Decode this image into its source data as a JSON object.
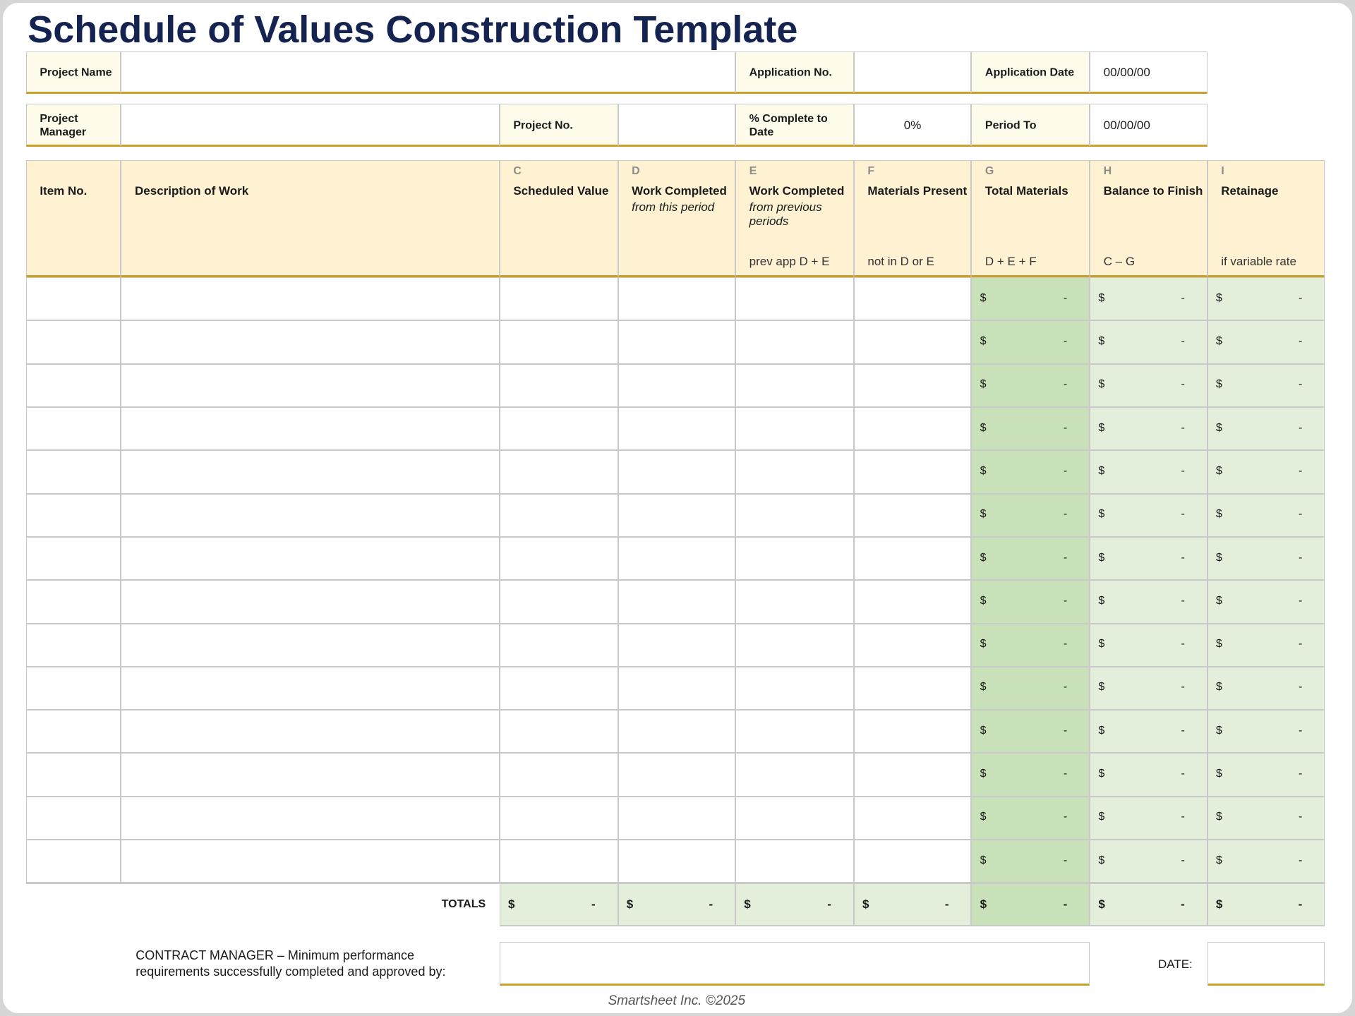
{
  "title": "Schedule of Values Construction Template",
  "info_rows": [
    [
      {
        "label": "Project Name"
      },
      {
        "label": "Application No."
      },
      {
        "label": "Application Date",
        "value": "00/00/00"
      }
    ],
    [
      {
        "label": "Project Manager"
      },
      {
        "label": "Project No."
      },
      {
        "label": "% Complete to Date",
        "value": "0%"
      },
      {
        "label": "Period To",
        "value": "00/00/00"
      }
    ]
  ],
  "columns": [
    {
      "name": "Item No."
    },
    {
      "name": "Description of Work"
    },
    {
      "letter": "C",
      "name": "Scheduled Value"
    },
    {
      "letter": "D",
      "name": "Work Completed",
      "note": "from this period"
    },
    {
      "letter": "E",
      "name": "Work Completed",
      "note": "from previous periods",
      "formula": "prev app D + E"
    },
    {
      "letter": "F",
      "name": "Materials Present",
      "formula": "not in D or E"
    },
    {
      "letter": "G",
      "name": "Total Materials",
      "formula": "D + E + F"
    },
    {
      "letter": "H",
      "name": "Balance to Finish",
      "formula": "C – G"
    },
    {
      "letter": "I",
      "name": "Retainage",
      "formula": "if variable rate"
    }
  ],
  "currency": "$",
  "rows": [
    [
      "-",
      "-",
      "-"
    ],
    [
      "-",
      "-",
      "-"
    ],
    [
      "-",
      "-",
      "-"
    ],
    [
      "-",
      "-",
      "-"
    ],
    [
      "-",
      "-",
      "-"
    ],
    [
      "-",
      "-",
      "-"
    ],
    [
      "-",
      "-",
      "-"
    ],
    [
      "-",
      "-",
      "-"
    ],
    [
      "-",
      "-",
      "-"
    ],
    [
      "-",
      "-",
      "-"
    ],
    [
      "-",
      "-",
      "-"
    ],
    [
      "-",
      "-",
      "-"
    ],
    [
      "-",
      "-",
      "-"
    ],
    [
      "-",
      "-",
      "-"
    ]
  ],
  "totals": {
    "label": "TOTALS",
    "values": [
      "-",
      "-",
      "-",
      "-",
      "-",
      "-",
      "-"
    ]
  },
  "signature": {
    "text": "CONTRACT MANAGER – Minimum performance requirements successfully completed and approved by:",
    "date_label": "DATE:"
  },
  "footer": "Smartsheet Inc. ©2025"
}
